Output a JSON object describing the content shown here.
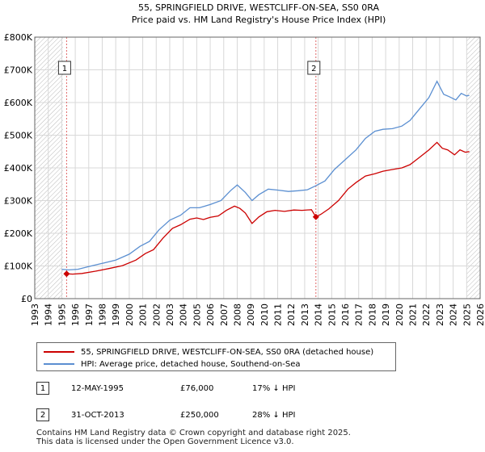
{
  "chart_data": {
    "type": "line",
    "title": "55, SPRINGFIELD DRIVE, WESTCLIFF-ON-SEA, SS0 0RA",
    "subtitle": "Price paid vs. HM Land Registry's House Price Index (HPI)",
    "xlabel": "",
    "ylabel": "",
    "xlim": [
      1993,
      2026
    ],
    "ylim": [
      0,
      800000
    ],
    "grid": true,
    "x_ticks": [
      1993,
      1994,
      1995,
      1996,
      1997,
      1998,
      1999,
      2000,
      2001,
      2002,
      2003,
      2004,
      2005,
      2006,
      2007,
      2008,
      2009,
      2010,
      2011,
      2012,
      2013,
      2014,
      2015,
      2016,
      2017,
      2018,
      2019,
      2020,
      2021,
      2022,
      2023,
      2024,
      2025,
      2026
    ],
    "y_ticks": [
      {
        "value": 0,
        "label": "£0"
      },
      {
        "value": 100000,
        "label": "£100K"
      },
      {
        "value": 200000,
        "label": "£200K"
      },
      {
        "value": 300000,
        "label": "£300K"
      },
      {
        "value": 400000,
        "label": "£400K"
      },
      {
        "value": 500000,
        "label": "£500K"
      },
      {
        "value": 600000,
        "label": "£600K"
      },
      {
        "value": 700000,
        "label": "£700K"
      },
      {
        "value": 800000,
        "label": "£800K"
      }
    ],
    "hatched_ranges": [
      [
        1993,
        1995.1
      ],
      [
        2025.0,
        2026
      ]
    ],
    "series": [
      {
        "name": "55, SPRINGFIELD DRIVE, WESTCLIFF-ON-SEA, SS0 0RA (detached house)",
        "color": "#cc0000",
        "points": [
          [
            1995.36,
            76000
          ],
          [
            1995.8,
            75000
          ],
          [
            1996.5,
            77000
          ],
          [
            1997.5,
            84000
          ],
          [
            1998.5,
            92000
          ],
          [
            1999.5,
            101000
          ],
          [
            2000.5,
            118000
          ],
          [
            2001.2,
            138000
          ],
          [
            2001.8,
            150000
          ],
          [
            2002.5,
            185000
          ],
          [
            2003.2,
            215000
          ],
          [
            2003.8,
            226000
          ],
          [
            2004.5,
            243000
          ],
          [
            2005.0,
            247000
          ],
          [
            2005.5,
            242000
          ],
          [
            2006.0,
            249000
          ],
          [
            2006.6,
            253000
          ],
          [
            2007.2,
            270000
          ],
          [
            2007.8,
            283000
          ],
          [
            2008.2,
            276000
          ],
          [
            2008.6,
            262000
          ],
          [
            2009.1,
            230000
          ],
          [
            2009.6,
            250000
          ],
          [
            2010.2,
            266000
          ],
          [
            2010.8,
            270000
          ],
          [
            2011.5,
            267000
          ],
          [
            2012.2,
            271000
          ],
          [
            2012.8,
            270000
          ],
          [
            2013.5,
            272000
          ],
          [
            2013.83,
            250000
          ],
          [
            2014.2,
            258000
          ],
          [
            2014.8,
            275000
          ],
          [
            2015.5,
            300000
          ],
          [
            2016.2,
            335000
          ],
          [
            2016.8,
            355000
          ],
          [
            2017.5,
            375000
          ],
          [
            2018.2,
            382000
          ],
          [
            2018.8,
            390000
          ],
          [
            2019.5,
            395000
          ],
          [
            2020.2,
            400000
          ],
          [
            2020.8,
            410000
          ],
          [
            2021.5,
            432000
          ],
          [
            2022.2,
            455000
          ],
          [
            2022.8,
            478000
          ],
          [
            2023.2,
            460000
          ],
          [
            2023.6,
            455000
          ],
          [
            2024.1,
            440000
          ],
          [
            2024.5,
            455000
          ],
          [
            2024.9,
            448000
          ],
          [
            2025.2,
            450000
          ]
        ]
      },
      {
        "name": "HPI: Average price, detached house, Southend-on-Sea",
        "color": "#5b8fd1",
        "points": [
          [
            1995.0,
            90000
          ],
          [
            1995.5,
            88000
          ],
          [
            1996.2,
            90000
          ],
          [
            1997.0,
            98000
          ],
          [
            1998.0,
            108000
          ],
          [
            1999.0,
            118000
          ],
          [
            2000.0,
            136000
          ],
          [
            2000.8,
            160000
          ],
          [
            2001.5,
            175000
          ],
          [
            2002.2,
            210000
          ],
          [
            2003.0,
            240000
          ],
          [
            2003.8,
            255000
          ],
          [
            2004.5,
            278000
          ],
          [
            2005.2,
            278000
          ],
          [
            2006.0,
            288000
          ],
          [
            2006.8,
            300000
          ],
          [
            2007.5,
            330000
          ],
          [
            2008.0,
            348000
          ],
          [
            2008.6,
            325000
          ],
          [
            2009.1,
            300000
          ],
          [
            2009.6,
            318000
          ],
          [
            2010.3,
            335000
          ],
          [
            2011.0,
            332000
          ],
          [
            2011.8,
            328000
          ],
          [
            2012.5,
            330000
          ],
          [
            2013.2,
            333000
          ],
          [
            2013.8,
            345000
          ],
          [
            2014.5,
            360000
          ],
          [
            2015.2,
            395000
          ],
          [
            2016.0,
            425000
          ],
          [
            2016.8,
            455000
          ],
          [
            2017.5,
            490000
          ],
          [
            2018.2,
            512000
          ],
          [
            2018.8,
            518000
          ],
          [
            2019.5,
            520000
          ],
          [
            2020.2,
            528000
          ],
          [
            2020.8,
            545000
          ],
          [
            2021.5,
            580000
          ],
          [
            2022.2,
            615000
          ],
          [
            2022.8,
            665000
          ],
          [
            2023.3,
            625000
          ],
          [
            2023.7,
            618000
          ],
          [
            2024.2,
            608000
          ],
          [
            2024.6,
            628000
          ],
          [
            2025.0,
            620000
          ],
          [
            2025.2,
            622000
          ]
        ]
      }
    ],
    "sales": [
      {
        "id": "1",
        "x": 1995.36,
        "price": 76000
      },
      {
        "id": "2",
        "x": 2013.83,
        "price": 250000
      }
    ]
  },
  "legend": {
    "items": [
      {
        "label": "55, SPRINGFIELD DRIVE, WESTCLIFF-ON-SEA, SS0 0RA (detached house)",
        "color": "#cc0000"
      },
      {
        "label": "HPI: Average price, detached house, Southend-on-Sea",
        "color": "#5b8fd1"
      }
    ]
  },
  "sales_table": [
    {
      "id": "1",
      "date": "12-MAY-1995",
      "price": "£76,000",
      "hpi": "17% ↓ HPI"
    },
    {
      "id": "2",
      "date": "31-OCT-2013",
      "price": "£250,000",
      "hpi": "28% ↓ HPI"
    }
  ],
  "footer": {
    "line1": "Contains HM Land Registry data © Crown copyright and database right 2025.",
    "line2": "This data is licensed under the Open Government Licence v3.0."
  }
}
